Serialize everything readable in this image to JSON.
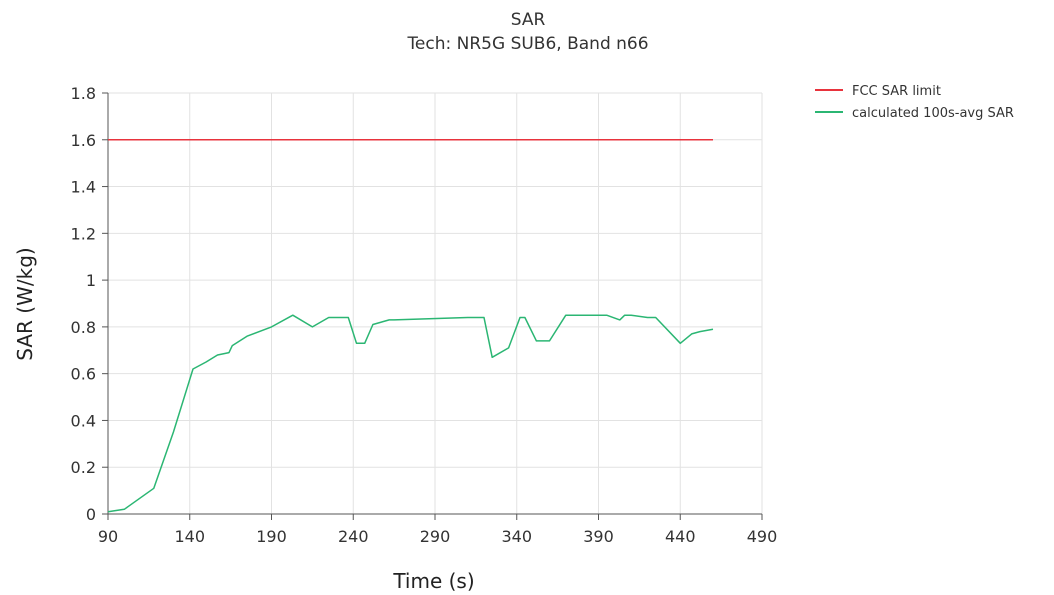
{
  "chart_data": {
    "type": "line",
    "title": "SAR",
    "subtitle": "Tech: NR5G SUB6, Band n66",
    "xlabel": "Time (s)",
    "ylabel": "SAR (W/kg)",
    "xlim": [
      90,
      490
    ],
    "ylim": [
      0,
      1.8
    ],
    "xticks": [
      90,
      140,
      190,
      240,
      290,
      340,
      390,
      440,
      490
    ],
    "yticks": [
      0,
      0.2,
      0.4,
      0.6,
      0.8,
      1,
      1.2,
      1.4,
      1.6,
      1.8
    ],
    "grid": true,
    "legend_position": "top-right",
    "series": [
      {
        "name": "FCC SAR limit",
        "color": "#e8333d",
        "x": [
          90,
          460
        ],
        "y": [
          1.6,
          1.6
        ]
      },
      {
        "name": "calculated 100s-avg SAR",
        "color": "#2bb673",
        "x": [
          90,
          100,
          118,
          130,
          142,
          150,
          157,
          164,
          166,
          175,
          190,
          203,
          215,
          225,
          237,
          242,
          247,
          252,
          262,
          265,
          310,
          320,
          325,
          335,
          342,
          345,
          352,
          360,
          370,
          395,
          403,
          406,
          410,
          420,
          425,
          440,
          447,
          452,
          460
        ],
        "y": [
          0.01,
          0.02,
          0.11,
          0.35,
          0.62,
          0.65,
          0.68,
          0.69,
          0.72,
          0.76,
          0.8,
          0.85,
          0.8,
          0.84,
          0.84,
          0.73,
          0.73,
          0.81,
          0.83,
          0.83,
          0.84,
          0.84,
          0.67,
          0.71,
          0.84,
          0.84,
          0.74,
          0.74,
          0.85,
          0.85,
          0.83,
          0.85,
          0.85,
          0.84,
          0.84,
          0.73,
          0.77,
          0.78,
          0.79
        ]
      }
    ]
  }
}
